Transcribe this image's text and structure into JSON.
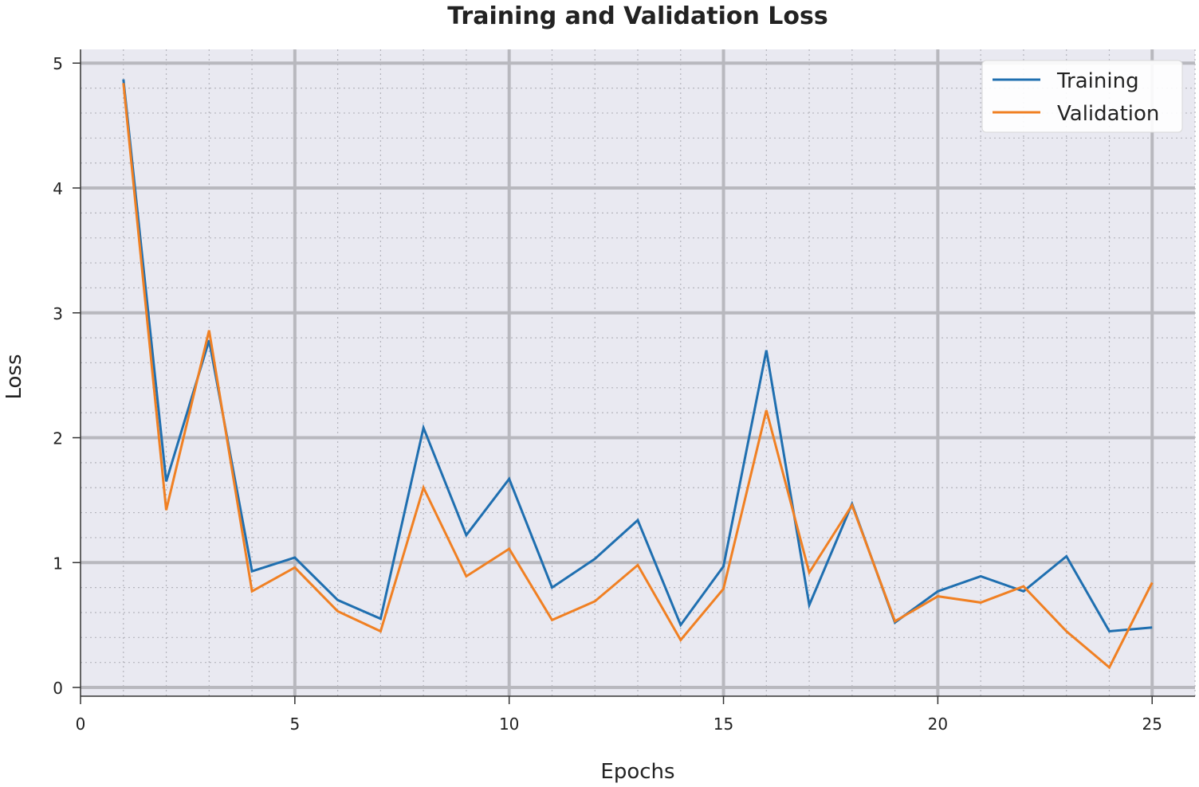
{
  "chart_data": {
    "type": "line",
    "title": "Training and Validation Loss",
    "xlabel": "Epochs",
    "ylabel": "Loss",
    "xlim": [
      0,
      26
    ],
    "ylim": [
      -0.07,
      5.11
    ],
    "xticks": [
      0,
      5,
      10,
      15,
      20,
      25
    ],
    "yticks": [
      0,
      1,
      2,
      3,
      4,
      5
    ],
    "xtick_labels": [
      "0",
      "5",
      "10",
      "15",
      "20",
      "25"
    ],
    "ytick_labels": [
      "0",
      "1",
      "2",
      "3",
      "4",
      "5"
    ],
    "grid": true,
    "legend_position": "top-right",
    "x": [
      1,
      2,
      3,
      4,
      5,
      6,
      7,
      8,
      9,
      10,
      11,
      12,
      13,
      14,
      15,
      16,
      17,
      18,
      19,
      20,
      21,
      22,
      23,
      24,
      25
    ],
    "series": [
      {
        "name": "Training",
        "color": "#1f6fb0",
        "values": [
          4.87,
          1.65,
          2.78,
          0.93,
          1.04,
          0.7,
          0.55,
          2.08,
          1.22,
          1.67,
          0.8,
          1.03,
          1.34,
          0.5,
          0.97,
          2.7,
          0.66,
          1.47,
          0.52,
          0.77,
          0.89,
          0.77,
          1.05,
          0.45,
          0.48
        ]
      },
      {
        "name": "Validation",
        "color": "#f08023",
        "values": [
          4.84,
          1.42,
          2.86,
          0.77,
          0.96,
          0.61,
          0.45,
          1.6,
          0.89,
          1.11,
          0.54,
          0.69,
          0.98,
          0.38,
          0.79,
          2.22,
          0.92,
          1.46,
          0.53,
          0.73,
          0.68,
          0.81,
          0.45,
          0.16,
          0.84
        ]
      }
    ]
  }
}
